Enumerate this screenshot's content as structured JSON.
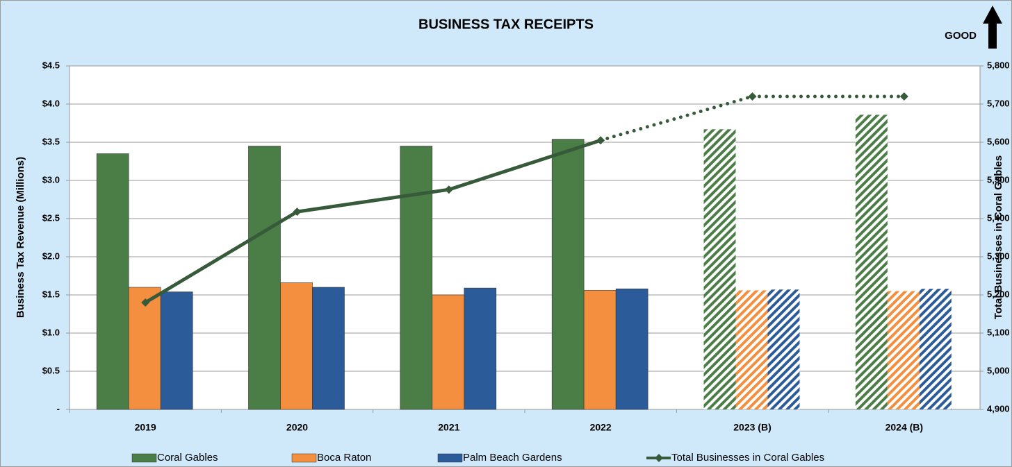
{
  "chart_data": {
    "type": "bar",
    "title": "BUSINESS TAX RECEIPTS",
    "annotation": "GOOD",
    "categories": [
      "2019",
      "2020",
      "2021",
      "2022",
      "2023 (B)",
      "2024 (B)"
    ],
    "projected": [
      false,
      false,
      false,
      false,
      true,
      true
    ],
    "series": [
      {
        "name": "Coral Gables",
        "color": "#4b7d46",
        "values": [
          3.35,
          3.45,
          3.45,
          3.54,
          3.67,
          3.86
        ]
      },
      {
        "name": "Boca Raton",
        "color": "#f38f3e",
        "values": [
          1.6,
          1.66,
          1.5,
          1.56,
          1.56,
          1.55
        ]
      },
      {
        "name": "Palm Beach Gardens",
        "color": "#2b5b99",
        "values": [
          1.54,
          1.6,
          1.59,
          1.58,
          1.57,
          1.58
        ]
      },
      {
        "name": "Total Businesses in Coral Gables",
        "type": "line",
        "axis": "y2",
        "color": "#375b3a",
        "values": [
          5180,
          5418,
          5476,
          5605,
          5720,
          5720
        ]
      }
    ],
    "ylabel": "Business Tax Revenue (Millions)",
    "y2label": "Total Businesses in Coral Gables",
    "ylim": [
      0,
      4.5
    ],
    "yticks": [
      {
        "value": 0,
        "label": "-"
      },
      {
        "value": 0.5,
        "label": "$0.5"
      },
      {
        "value": 1,
        "label": "$1.0"
      },
      {
        "value": 1.5,
        "label": "$1.5"
      },
      {
        "value": 2,
        "label": "$2.0"
      },
      {
        "value": 2.5,
        "label": "$2.5"
      },
      {
        "value": 3,
        "label": "$3.0"
      },
      {
        "value": 3.5,
        "label": "$3.5"
      },
      {
        "value": 4,
        "label": "$4.0"
      },
      {
        "value": 4.5,
        "label": "$4.5"
      }
    ],
    "y2lim": [
      4900,
      5800
    ],
    "y2ticks": [
      {
        "value": 4900,
        "label": "4,900"
      },
      {
        "value": 5000,
        "label": "5,000"
      },
      {
        "value": 5100,
        "label": "5,100"
      },
      {
        "value": 5200,
        "label": "5,200"
      },
      {
        "value": 5300,
        "label": "5,300"
      },
      {
        "value": 5400,
        "label": "5,400"
      },
      {
        "value": 5500,
        "label": "5,500"
      },
      {
        "value": 5600,
        "label": "5,600"
      },
      {
        "value": 5700,
        "label": "5,700"
      },
      {
        "value": 5800,
        "label": "5,800"
      }
    ],
    "grid": true,
    "legend": "bottom"
  }
}
